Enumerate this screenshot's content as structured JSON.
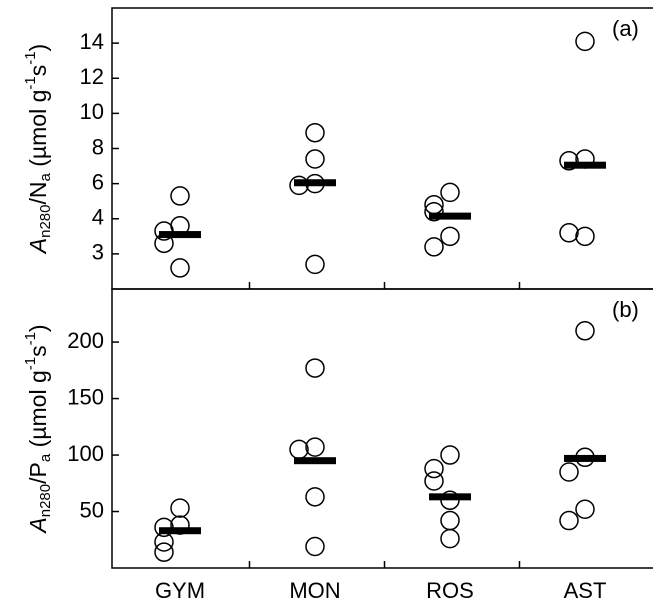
{
  "chart_data": [
    {
      "type": "strip",
      "panel_label": "(a)",
      "y_label": [
        "A",
        "n280",
        "/N",
        "a",
        " (µmol g",
        "-1",
        "s",
        "-1",
        ")"
      ],
      "ylim": [
        2,
        16
      ],
      "yticks": [
        3,
        4,
        6,
        8,
        10,
        12,
        14
      ],
      "scale": "tick-spaced",
      "points": [
        [
          5.3,
          3.8,
          3.65,
          3.3,
          2.6
        ],
        [
          8.9,
          7.4,
          6.0,
          5.9,
          2.7
        ],
        [
          5.5,
          4.8,
          4.4,
          3.5,
          3.2
        ],
        [
          14.1,
          7.4,
          7.3,
          3.5,
          3.6
        ]
      ],
      "means": [
        3.55,
        6.05,
        4.15,
        7.05
      ]
    },
    {
      "type": "strip",
      "panel_label": "(b)",
      "y_label": [
        "A",
        "n280",
        "/P",
        "a",
        " (µmol g",
        "-1",
        "s",
        "-1",
        ")"
      ],
      "ylim": [
        0,
        247
      ],
      "yticks": [
        50,
        100,
        150,
        200
      ],
      "scale": "linear",
      "categories": [
        "GYM",
        "MON",
        "ROS",
        "AST"
      ],
      "points": [
        [
          53,
          38,
          36,
          23,
          14
        ],
        [
          177,
          107,
          105,
          63,
          19
        ],
        [
          100,
          88,
          77,
          60,
          42,
          26
        ],
        [
          210,
          98,
          85,
          52,
          42
        ]
      ],
      "means": [
        33,
        95,
        63,
        97
      ]
    }
  ]
}
